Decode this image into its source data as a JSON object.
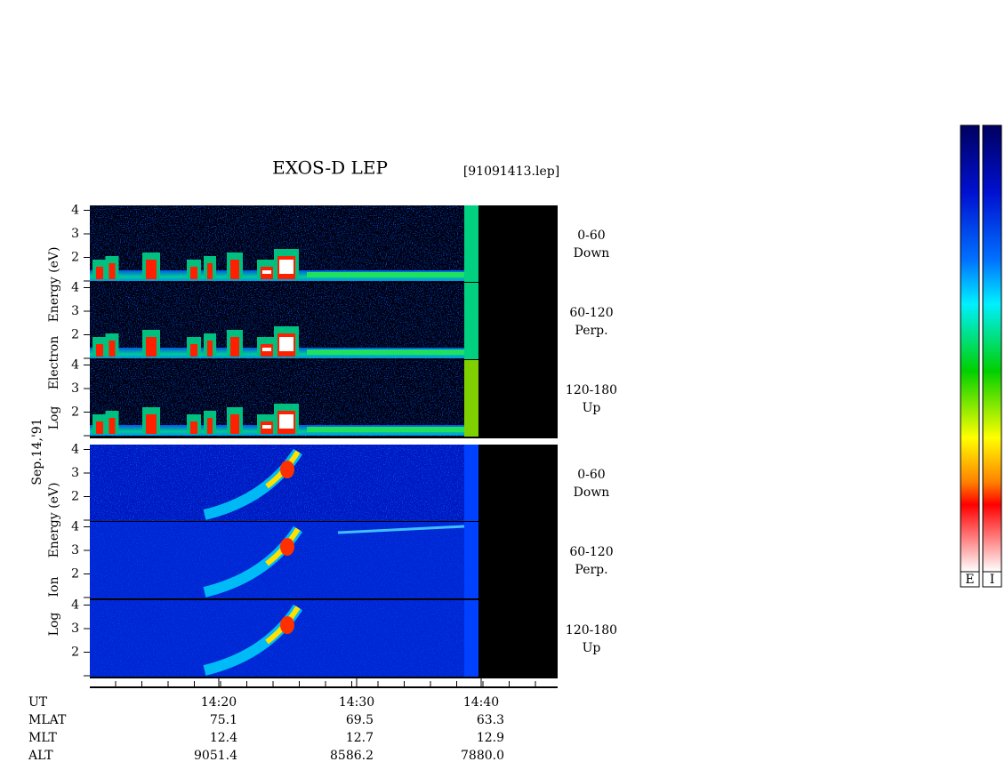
{
  "header": {
    "title": "EXOS-D LEP",
    "file": "[91091413.lep]"
  },
  "date": "Sep.14,'91",
  "electron_axis_label": [
    "Log",
    "Electron",
    "Energy (eV)"
  ],
  "ion_axis_label": [
    "Log",
    "Ion",
    "Energy (eV)"
  ],
  "panels": [
    {
      "species": "electron",
      "yticks": [
        2,
        3,
        4
      ],
      "channel": [
        "0-60",
        "Down"
      ]
    },
    {
      "species": "electron",
      "yticks": [
        2,
        3,
        4
      ],
      "channel": [
        "60-120",
        "Perp."
      ]
    },
    {
      "species": "electron",
      "yticks": [
        2,
        3,
        4
      ],
      "channel": [
        "120-180",
        "Up"
      ]
    },
    {
      "species": "ion",
      "yticks": [
        2,
        3,
        4
      ],
      "channel": [
        "0-60",
        "Down"
      ]
    },
    {
      "species": "ion",
      "yticks": [
        2,
        3,
        4
      ],
      "channel": [
        "60-120",
        "Perp."
      ]
    },
    {
      "species": "ion",
      "yticks": [
        2,
        3,
        4
      ],
      "channel": [
        "120-180",
        "Up"
      ]
    }
  ],
  "time_ticks": [
    "14:20",
    "14:30",
    "14:40"
  ],
  "ephemeris": {
    "rows": [
      {
        "name": "UT",
        "values": [
          "14:20",
          "14:30",
          "14:40"
        ]
      },
      {
        "name": "MLAT",
        "values": [
          "75.1",
          "69.5",
          "63.3"
        ]
      },
      {
        "name": "MLT",
        "values": [
          "12.4",
          "12.7",
          "12.9"
        ]
      },
      {
        "name": "ALT",
        "values": [
          "9051.4",
          "8586.2",
          "7880.0"
        ]
      }
    ]
  },
  "colorbars": [
    "E",
    "I"
  ]
}
